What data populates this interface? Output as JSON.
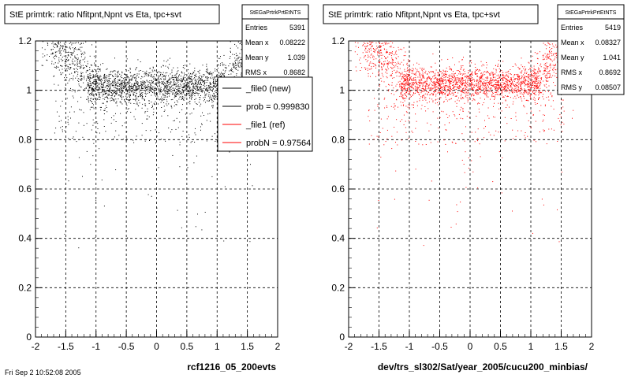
{
  "chart_data": [
    {
      "type": "scatter",
      "title": "StE primtrk: ratio Nfitpnt,Npnt vs Eta, tpc+svt",
      "xlabel": "rcf1216_05_200evts",
      "ylabel": "",
      "xlim": [
        -2,
        2
      ],
      "ylim": [
        0,
        1.2
      ],
      "x_ticks": [
        "-2",
        "-1.5",
        "-1",
        "-0.5",
        "0",
        "0.5",
        "1",
        "1.5",
        "2"
      ],
      "y_ticks": [
        "0",
        "0.2",
        "0.4",
        "0.6",
        "0.8",
        "1",
        "1.2"
      ],
      "grid": true,
      "marker_color": "#000000",
      "stats": {
        "title": "StEGaPrtrkPrtEtNTS",
        "rows": [
          {
            "label": "Entries",
            "value": "5391"
          },
          {
            "label": "Mean x",
            "value": "0.08222"
          },
          {
            "label": "Mean y",
            "value": "1.039"
          },
          {
            "label": "RMS x",
            "value": "0.8682"
          }
        ]
      },
      "legend": [
        {
          "label": "_file0 (new)",
          "color": "#000000"
        },
        {
          "label": "prob = 0.999830",
          "color": "#000000"
        },
        {
          "label": "_file1 (ref)",
          "color": "#ff0000"
        },
        {
          "label": "probN = 0.97564",
          "color": "#ff0000"
        }
      ],
      "series": [
        {
          "band_center": 1.02,
          "band_halfwidth": 0.05,
          "x_range": [
            -1.2,
            1.2
          ]
        }
      ]
    },
    {
      "type": "scatter",
      "title": "StE primtrk: ratio Nfitpnt,Npnt vs Eta, tpc+svt",
      "xlabel": "dev/trs_sl302/Sat/year_2005/cucu200_minbias/",
      "ylabel": "",
      "xlim": [
        -2,
        2
      ],
      "ylim": [
        0,
        1.2
      ],
      "x_ticks": [
        "-2",
        "-1.5",
        "-1",
        "-0.5",
        "0",
        "0.5",
        "1",
        "1.5",
        "2"
      ],
      "y_ticks": [
        "0",
        "0.2",
        "0.4",
        "0.6",
        "0.8",
        "1",
        "1.2"
      ],
      "grid": true,
      "marker_color": "#ff0000",
      "stats": {
        "title": "StEGaPrtrkPrtEtNTS",
        "rows": [
          {
            "label": "Entries",
            "value": "5419"
          },
          {
            "label": "Mean x",
            "value": "0.08327"
          },
          {
            "label": "Mean y",
            "value": "1.041"
          },
          {
            "label": "RMS x",
            "value": "0.8692"
          },
          {
            "label": "RMS y",
            "value": "0.08507"
          }
        ]
      },
      "series": [
        {
          "band_center": 1.03,
          "band_halfwidth": 0.05,
          "x_range": [
            -1.2,
            1.2
          ]
        }
      ]
    }
  ],
  "footer_text": "Fri Sep  2 10:52:08 2005"
}
